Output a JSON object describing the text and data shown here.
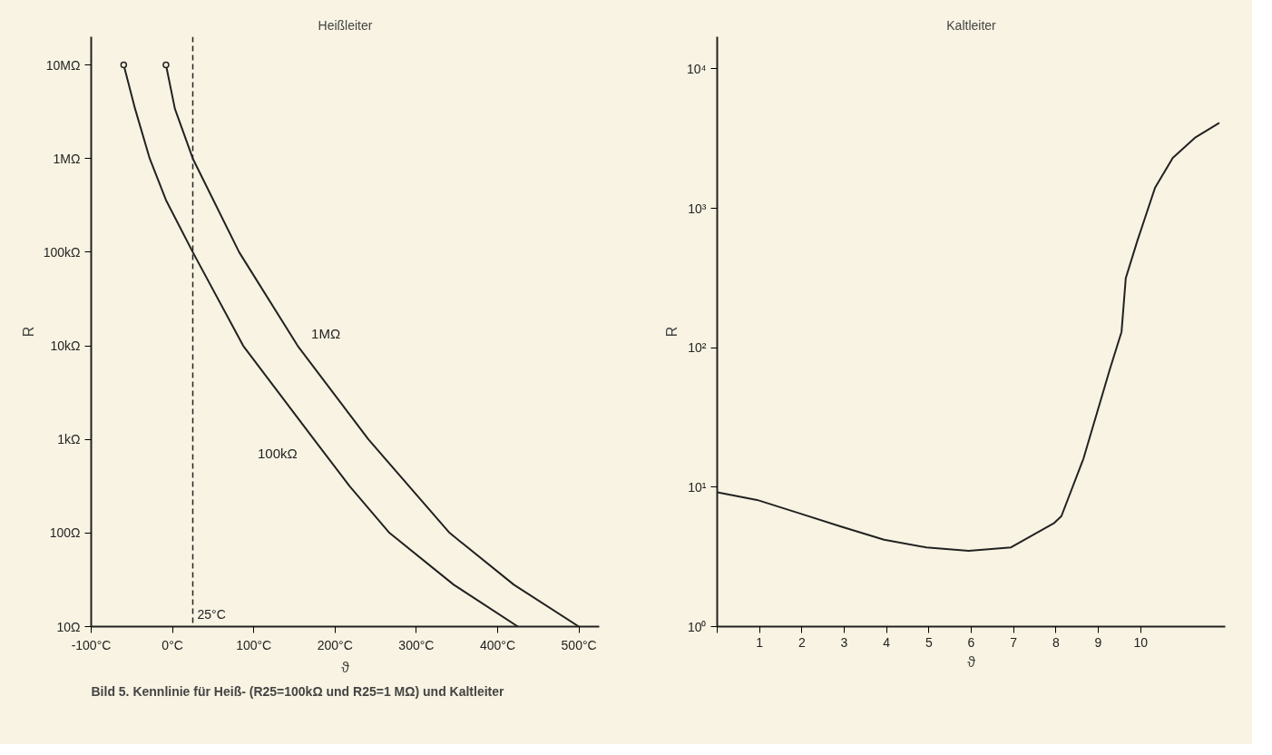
{
  "chart_data": [
    {
      "type": "line",
      "title": "Heißleiter",
      "xlabel": "ϑ",
      "ylabel": "R",
      "log": "y",
      "xlim": [
        -100,
        525
      ],
      "ylim": [
        10,
        20000000
      ],
      "xticks": [
        {
          "value": -100,
          "label": "-100°C"
        },
        {
          "value": 0,
          "label": "0°C"
        },
        {
          "value": 100,
          "label": "100°C"
        },
        {
          "value": 200,
          "label": "200°C"
        },
        {
          "value": 300,
          "label": "300°C"
        },
        {
          "value": 400,
          "label": "400°C"
        },
        {
          "value": 500,
          "label": "500°C"
        }
      ],
      "yticks": [
        {
          "value": 10,
          "label": "10Ω"
        },
        {
          "value": 100,
          "label": "100Ω"
        },
        {
          "value": 1000,
          "label": "1kΩ"
        },
        {
          "value": 10000,
          "label": "10kΩ"
        },
        {
          "value": 100000,
          "label": "100kΩ"
        },
        {
          "value": 1000000,
          "label": "1MΩ"
        },
        {
          "value": 10000000,
          "label": "10MΩ"
        }
      ],
      "grid": false,
      "series": [
        {
          "name": "100kΩ",
          "color": "#222222",
          "x": [
            -60,
            -46,
            -28,
            -8,
            25,
            87,
            174,
            218,
            267,
            346,
            425
          ],
          "values": [
            10000000,
            3400000,
            1000000,
            360000,
            100000,
            10000,
            1000,
            316,
            100,
            28,
            10
          ]
        },
        {
          "name": "1MΩ",
          "color": "#222222",
          "x": [
            -8,
            3,
            25,
            82,
            154,
            241,
            341,
            420,
            500
          ],
          "values": [
            10000000,
            3400000,
            1000000,
            100000,
            10000,
            1000,
            100,
            28,
            10
          ]
        },
        {
          "type": "scatter",
          "marker": "circle",
          "color": "#222222",
          "x": [
            -60,
            -8
          ],
          "values": [
            10000000,
            10000000
          ]
        }
      ],
      "ref_lines": [
        {
          "axis": "x",
          "value": 25,
          "label": "25°C",
          "line_style": "dashed",
          "color": "#222222"
        }
      ],
      "annotations": [
        "Bild 5. Kennlinie für Heiß- (R25=100kΩ und R25=1 MΩ) und Kaltleiter"
      ]
    },
    {
      "type": "line",
      "title": "Kaltleiter",
      "xlabel": "ϑ",
      "ylabel": "R",
      "log": "y",
      "xlim": [
        0,
        12
      ],
      "ylim": [
        1,
        17000
      ],
      "xticks": [
        {
          "value": 0,
          "label": null
        },
        1,
        2,
        3,
        4,
        5,
        6,
        7,
        8,
        9,
        10
      ],
      "yticks": [
        {
          "value": 1,
          "label": "10⁰"
        },
        {
          "value": 10,
          "label": "10¹"
        },
        {
          "value": 100,
          "label": "10²"
        },
        {
          "value": 1000,
          "label": "10³"
        },
        {
          "value": 10000,
          "label": "10⁴"
        }
      ],
      "grid": false,
      "series": [
        {
          "color": "#222222",
          "x": [
            0,
            0.94,
            1.94,
            2.94,
            3.94,
            4.94,
            5.94,
            6.94,
            7.95,
            8.13,
            8.65,
            9.28,
            9.55,
            9.65,
            9.92,
            10.34,
            10.76,
            11.28,
            11.86
          ],
          "values": [
            9.2,
            8.1,
            6.5,
            5.2,
            4.2,
            3.7,
            3.5,
            3.7,
            5.5,
            6.2,
            16,
            71,
            130,
            316,
            580,
            1400,
            2300,
            3200,
            4100
          ]
        }
      ]
    }
  ]
}
